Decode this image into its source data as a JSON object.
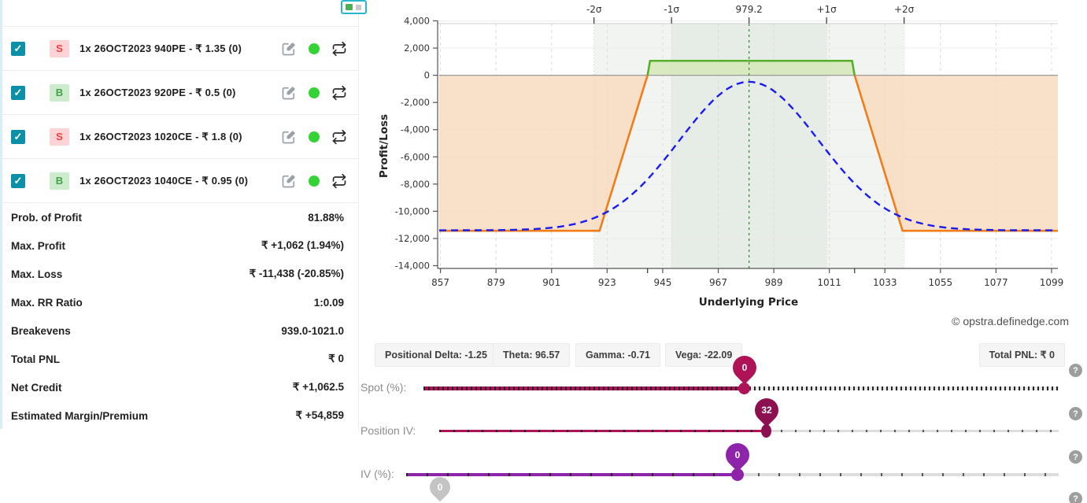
{
  "panel": {
    "positions": [
      {
        "side": "S",
        "label": "1x 26OCT2023 940PE - ₹ 1.35  (0)"
      },
      {
        "side": "B",
        "label": "1x 26OCT2023 920PE - ₹ 0.5  (0)"
      },
      {
        "side": "S",
        "label": "1x 26OCT2023 1020CE - ₹ 1.8  (0)"
      },
      {
        "side": "B",
        "label": "1x 26OCT2023 1040CE - ₹ 0.95  (0)"
      }
    ],
    "stats": [
      {
        "label": "Prob. of Profit",
        "value": "81.88%"
      },
      {
        "label": "Max. Profit",
        "value": "₹ +1,062 (1.94%)"
      },
      {
        "label": "Max. Loss",
        "value": "₹ -11,438 (-20.85%)"
      },
      {
        "label": "Max. RR Ratio",
        "value": "1:0.09"
      },
      {
        "label": "Breakevens",
        "value": "939.0-1021.0"
      },
      {
        "label": "Total PNL",
        "value": "₹ 0"
      },
      {
        "label": "Net Credit",
        "value": "₹ +1,062.5"
      },
      {
        "label": "Estimated Margin/Premium",
        "value": "₹ +54,859"
      }
    ]
  },
  "greeks": [
    "Positional Delta: -1.25",
    "Theta: 96.57",
    "Gamma: -0.71",
    "Vega: -22.09"
  ],
  "total_pnl_chip": "Total PNL: ₹ 0",
  "copyright": "© opstra.definedge.com",
  "sliders": {
    "spot": {
      "label": "Spot (%):",
      "value": "0"
    },
    "position_iv": {
      "label": "Position IV:",
      "value": "32"
    },
    "iv": {
      "label": "IV (%):",
      "value": "0"
    },
    "partial": {
      "value": "0"
    }
  },
  "chart_data": {
    "type": "line",
    "title": "",
    "xlabel": "Underlying Price",
    "ylabel": "Profit/Loss",
    "xlim": [
      856.5,
      1101.5
    ],
    "ylim": [
      -14000,
      4000
    ],
    "x_ticks": [
      857,
      879,
      901,
      923,
      945,
      967,
      989,
      1011,
      1033,
      1055,
      1077,
      1099
    ],
    "y_ticks": [
      4000,
      2000,
      0,
      -2000,
      -4000,
      -6000,
      -8000,
      -10000,
      -12000,
      -14000
    ],
    "spot": 979.2,
    "sigma": 30.7,
    "sigma_labels": [
      "-2σ",
      "-1σ",
      "979.2",
      "+1σ",
      "+2σ"
    ],
    "breakevens": [
      939.0,
      1021.0
    ],
    "max_profit": 1062.5,
    "max_loss": -11437.5,
    "grid": true,
    "legend": "none",
    "bands": {
      "inner_color": "#e6ece6",
      "outer_color": "#f1f4f1"
    },
    "series": [
      {
        "name": "expiry-payoff",
        "points": [
          [
            856.5,
            -11437.5
          ],
          [
            920,
            -11437.5
          ],
          [
            939,
            0
          ],
          [
            940,
            1062.5
          ],
          [
            1020,
            1062.5
          ],
          [
            1021,
            0
          ],
          [
            1040,
            -11437.5
          ],
          [
            1101.5,
            -11437.5
          ]
        ],
        "pos_color": "#56b02c",
        "neg_color": "#ef7d1a",
        "pos_fill": "#d6e9ba",
        "neg_fill": "#f8dcc0"
      },
      {
        "name": "t0-projection",
        "model": "gaussian",
        "base": -11400,
        "amplitude": 10920,
        "center": 979.2,
        "width": 27.5,
        "color": "#1b1bee",
        "dash": "9 6"
      }
    ]
  }
}
